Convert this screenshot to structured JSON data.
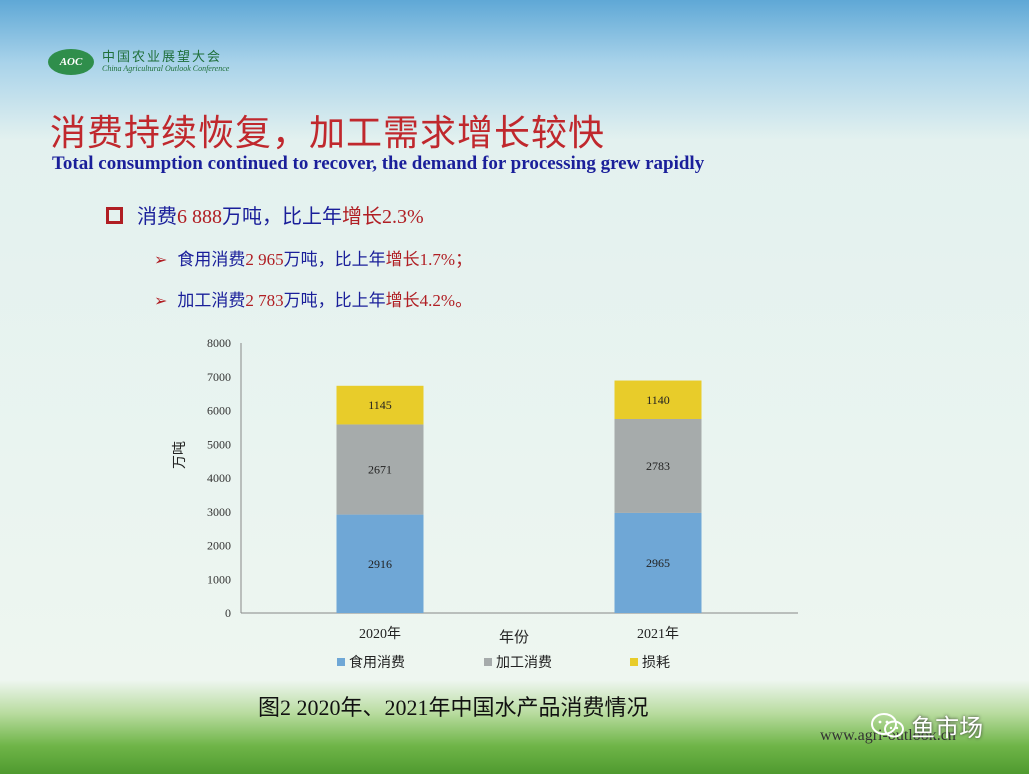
{
  "logo": {
    "mark": "AOC",
    "name_cn": "中国农业展望大会",
    "name_en": "China Agricultural Outlook Conference"
  },
  "title_cn": "消费持续恢复，加工需求增长较快",
  "title_en": "Total consumption continued to recover, the demand for processing grew rapidly",
  "bullet": {
    "prefix": "消费",
    "value": "6 888",
    "mid": "万吨，比上年",
    "growth_label": "增长",
    "growth": "2.3%"
  },
  "sub_bullets": [
    {
      "prefix": "食用消费",
      "value": "2 965",
      "mid": "万吨，比上年",
      "growth_label": "增长",
      "growth": "1.7%",
      "end": "；"
    },
    {
      "prefix": "加工消费",
      "value": "2 783",
      "mid": "万吨，比上年",
      "growth_label": "增长",
      "growth": "4.2%",
      "end": "。"
    }
  ],
  "chart_data": {
    "type": "bar",
    "stacked": true,
    "categories": [
      "2020年",
      "2021年"
    ],
    "series": [
      {
        "name": "食用消费",
        "values": [
          2916,
          2965
        ],
        "color": "#6fa7d6"
      },
      {
        "name": "加工消费",
        "values": [
          2671,
          2783
        ],
        "color": "#a6abab"
      },
      {
        "name": "损耗",
        "values": [
          1145,
          1140
        ],
        "color": "#e8cc2a"
      }
    ],
    "xlabel": "年份",
    "ylabel": "万吨",
    "ylim": [
      0,
      8000
    ],
    "yticks": [
      0,
      1000,
      2000,
      3000,
      4000,
      5000,
      6000,
      7000,
      8000
    ],
    "grid": false,
    "legend_position": "bottom"
  },
  "caption": "图2   2020年、2021年中国水产品消费情况",
  "footer": {
    "url": "www.agri-outlook.cn",
    "wechat_name": "鱼市场"
  }
}
